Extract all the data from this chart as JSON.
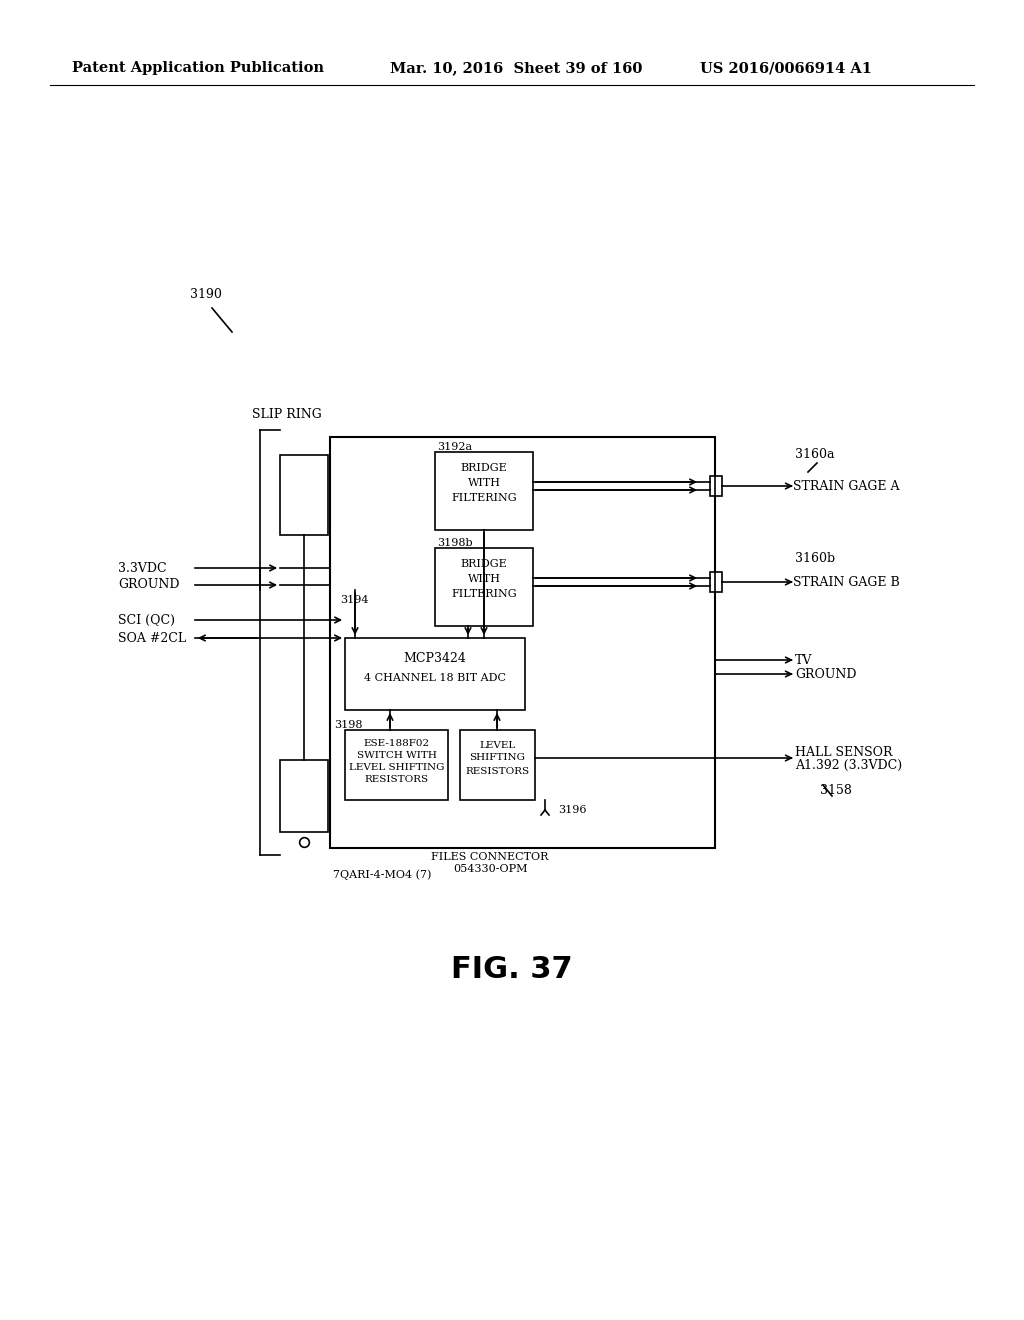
{
  "header_left": "Patent Application Publication",
  "header_mid": "Mar. 10, 2016  Sheet 39 of 160",
  "header_right": "US 2016/0066914 A1",
  "figure_label": "FIG. 37",
  "bg_color": "#ffffff",
  "line_color": "#000000",
  "ref_3190": "3190",
  "slip_ring_label": "SLIP RING",
  "label_33vdc": "3.3VDC",
  "label_ground": "GROUND",
  "label_sci": "SCI (QC)",
  "label_soa": "SOA #2CL",
  "ref_3194": "3194",
  "ref_3192a": "3192a",
  "ref_3198b": "3198b",
  "bridge_a_line1": "BRIDGE",
  "bridge_a_line2": "WITH",
  "bridge_a_line3": "FILTERING",
  "bridge_b_line1": "BRIDGE",
  "bridge_b_line2": "WITH",
  "bridge_b_line3": "FILTERING",
  "adc_line1": "MCP3424",
  "adc_line2": "4 CHANNEL 18 BIT ADC",
  "ref_3198": "3198",
  "switch_line1": "ESE-188F02",
  "switch_line2": "SWITCH WITH",
  "switch_line3": "LEVEL SHIFTING",
  "switch_line4": "RESISTORS",
  "level_line1": "LEVEL",
  "level_line2": "SHIFTING",
  "level_line3": "RESISTORS",
  "ref_3196": "3196",
  "connector_line1": "FILES CONNECTOR",
  "connector_line2": "054330-OPM",
  "ref_7qari": "7QARI-4-MO4 (7)",
  "ref_3160a": "3160a",
  "strain_a": "STRAIN GAGE A",
  "ref_3160b": "3160b",
  "strain_b": "STRAIN GAGE B",
  "label_tv": "TV",
  "label_gnd2": "GROUND",
  "hall_line1": "HALL SENSOR",
  "hall_line2": "A1.392 (3.3VDC)",
  "ref_3158": "3158"
}
